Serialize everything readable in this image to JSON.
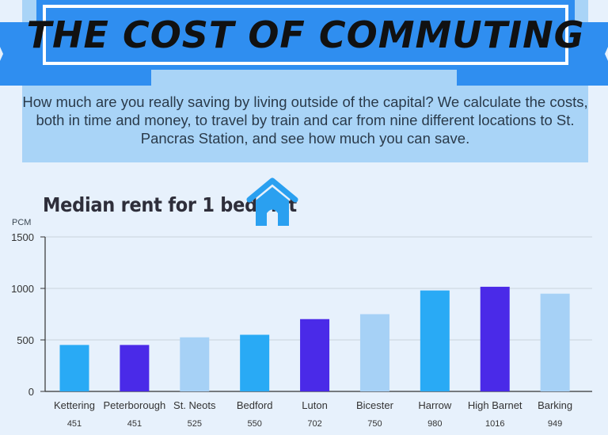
{
  "header": {
    "title": "THE COST OF COMMUTING",
    "intro": "How much are you really saving by living outside of the capital? We calculate the costs, both in time and money, to travel by train and car from nine different locations to St. Pancras Station, and see how much you can save."
  },
  "icons": {
    "title_icon": "house-icon"
  },
  "colors": {
    "background": "#e7f1fc",
    "band": "#a9d4f7",
    "ribbon": "#2f8ef0",
    "bar_blue": "#29aaf5",
    "bar_violet": "#4a2ae8",
    "bar_light": "#a6d1f6"
  },
  "chart_data": {
    "type": "bar",
    "title": "Median rent for 1 bed flat",
    "ylabel": "PCM",
    "xlabel": "",
    "ylim": [
      0,
      1500
    ],
    "yticks": [
      0,
      500,
      1000,
      1500
    ],
    "grid": true,
    "categories": [
      "Kettering",
      "Peterborough",
      "St. Neots",
      "Bedford",
      "Luton",
      "Bicester",
      "Harrow",
      "High Barnet",
      "Barking"
    ],
    "values": [
      451,
      451,
      525,
      550,
      702,
      750,
      980,
      1016,
      949
    ],
    "bar_colors": [
      "#29aaf5",
      "#4a2ae8",
      "#a6d1f6",
      "#29aaf5",
      "#4a2ae8",
      "#a6d1f6",
      "#29aaf5",
      "#4a2ae8",
      "#a6d1f6"
    ]
  }
}
